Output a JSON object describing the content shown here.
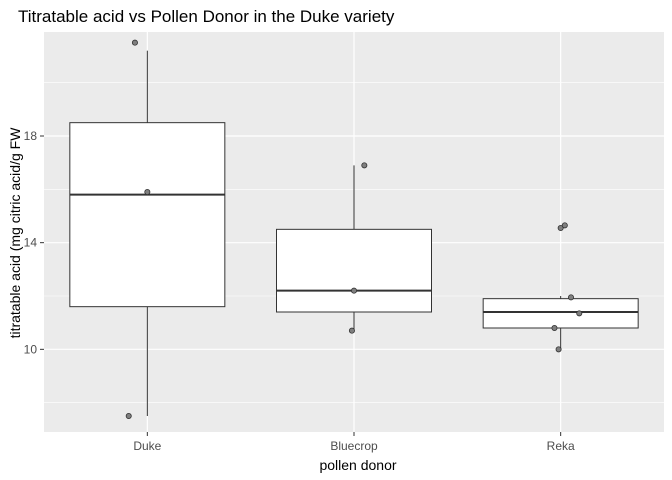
{
  "chart_data": {
    "type": "boxplot",
    "title": "Titratable acid vs Pollen Donor in the Duke variety",
    "xlabel": "pollen donor",
    "ylabel": "titratable acid (mg citric acid/g FW",
    "categories": [
      "Duke",
      "Bluecrop",
      "Reka"
    ],
    "ylim": [
      6.9,
      21.9
    ],
    "yticks": [
      10,
      14,
      18
    ],
    "grid": true,
    "legend": "none",
    "boxes": [
      {
        "category": "Duke",
        "whisker_low": 7.5,
        "q1": 11.6,
        "median": 15.8,
        "q3": 18.5,
        "whisker_high": 21.2
      },
      {
        "category": "Bluecrop",
        "whisker_low": 10.7,
        "q1": 11.4,
        "median": 12.2,
        "q3": 14.5,
        "whisker_high": 16.9
      },
      {
        "category": "Reka",
        "whisker_low": 10.0,
        "q1": 10.8,
        "median": 11.4,
        "q3": 11.9,
        "whisker_high": 12.0
      }
    ],
    "points": [
      {
        "category": "Duke",
        "jitter": -0.06,
        "value": 21.5
      },
      {
        "category": "Duke",
        "jitter": 0.0,
        "value": 15.9
      },
      {
        "category": "Duke",
        "jitter": -0.09,
        "value": 7.5
      },
      {
        "category": "Bluecrop",
        "jitter": 0.05,
        "value": 16.9
      },
      {
        "category": "Bluecrop",
        "jitter": 0.0,
        "value": 12.2
      },
      {
        "category": "Bluecrop",
        "jitter": -0.01,
        "value": 10.7
      },
      {
        "category": "Reka",
        "jitter": 0.0,
        "value": 14.55
      },
      {
        "category": "Reka",
        "jitter": 0.02,
        "value": 14.65
      },
      {
        "category": "Reka",
        "jitter": 0.05,
        "value": 11.95
      },
      {
        "category": "Reka",
        "jitter": 0.09,
        "value": 11.35
      },
      {
        "category": "Reka",
        "jitter": -0.03,
        "value": 10.8
      },
      {
        "category": "Reka",
        "jitter": -0.01,
        "value": 10.0
      }
    ],
    "colors": {
      "panel": "#ebebeb",
      "grid_major": "#ffffff",
      "box_fill": "#ffffff",
      "box_line": "#333333",
      "point_fill": "#7f7f7f",
      "point_stroke": "#333333"
    }
  }
}
